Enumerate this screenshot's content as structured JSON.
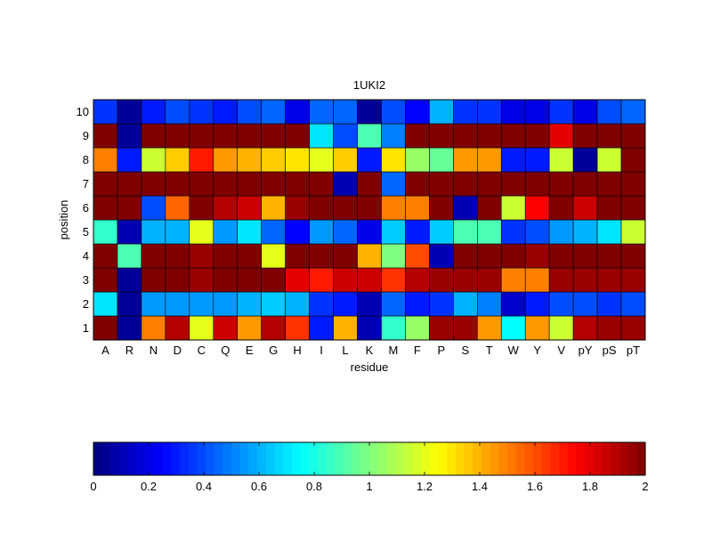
{
  "chart_data": {
    "type": "heatmap",
    "title": "1UKI2",
    "xlabel": "residue",
    "ylabel": "position",
    "x_categories": [
      "A",
      "R",
      "N",
      "D",
      "C",
      "Q",
      "E",
      "G",
      "H",
      "I",
      "L",
      "K",
      "M",
      "F",
      "P",
      "S",
      "T",
      "W",
      "Y",
      "V",
      "pY",
      "pS",
      "pT"
    ],
    "y_categories": [
      "1",
      "2",
      "3",
      "4",
      "5",
      "6",
      "7",
      "8",
      "9",
      "10"
    ],
    "colormap": "jet",
    "clim": [
      0,
      2
    ],
    "colorbar": {
      "orientation": "horizontal",
      "placement": "bottom",
      "ticks": [
        "0",
        "0.2",
        "0.4",
        "0.6",
        "0.8",
        "1",
        "1.2",
        "1.4",
        "1.6",
        "1.8",
        "2"
      ]
    },
    "values": [
      [
        2.0,
        0.05,
        1.5,
        1.9,
        1.2,
        1.85,
        1.45,
        1.9,
        1.65,
        0.3,
        1.4,
        0.1,
        0.85,
        1.05,
        1.95,
        1.95,
        1.45,
        0.75,
        1.45,
        1.15,
        1.9,
        1.95,
        1.95
      ],
      [
        0.7,
        0.05,
        0.55,
        0.55,
        0.55,
        0.55,
        0.6,
        0.65,
        0.6,
        0.35,
        0.3,
        0.1,
        0.45,
        0.3,
        0.35,
        0.6,
        0.5,
        0.15,
        0.3,
        0.4,
        0.4,
        0.35,
        0.4
      ],
      [
        2.0,
        0.05,
        2.0,
        2.0,
        1.95,
        2.0,
        2.0,
        2.0,
        1.8,
        1.7,
        1.85,
        1.85,
        1.65,
        1.9,
        1.95,
        1.95,
        1.95,
        1.5,
        1.5,
        1.95,
        1.95,
        1.95,
        1.95
      ],
      [
        2.0,
        0.9,
        2.0,
        2.0,
        1.95,
        2.0,
        2.0,
        1.2,
        2.0,
        2.0,
        2.0,
        1.4,
        1.0,
        1.6,
        0.1,
        2.0,
        2.0,
        2.0,
        1.95,
        2.0,
        2.0,
        2.0,
        2.0
      ],
      [
        0.85,
        0.1,
        0.6,
        0.6,
        1.2,
        0.55,
        0.7,
        0.45,
        0.25,
        0.55,
        0.45,
        0.2,
        0.65,
        0.3,
        0.65,
        0.9,
        0.9,
        0.35,
        0.4,
        0.55,
        0.6,
        0.7,
        1.15
      ],
      [
        2.0,
        2.0,
        0.4,
        1.55,
        2.0,
        1.9,
        1.85,
        1.4,
        1.95,
        2.0,
        2.0,
        2.0,
        1.5,
        1.5,
        2.0,
        0.1,
        2.0,
        1.15,
        1.75,
        2.0,
        1.85,
        2.0,
        2.0
      ],
      [
        2.0,
        2.0,
        2.0,
        2.0,
        2.0,
        2.0,
        2.0,
        2.0,
        2.0,
        2.0,
        0.1,
        2.0,
        0.45,
        2.0,
        2.0,
        2.0,
        2.0,
        2.0,
        2.0,
        2.0,
        2.0,
        2.0,
        2.0
      ],
      [
        1.5,
        0.3,
        1.15,
        1.35,
        1.7,
        1.45,
        1.4,
        1.35,
        1.3,
        1.2,
        1.35,
        0.3,
        1.3,
        1.05,
        0.95,
        1.45,
        1.45,
        0.3,
        0.3,
        1.15,
        0.05,
        1.15,
        2.0
      ],
      [
        2.0,
        0.05,
        2.0,
        2.0,
        2.0,
        2.0,
        2.0,
        2.0,
        2.0,
        0.7,
        0.4,
        0.9,
        0.5,
        2.0,
        2.0,
        2.0,
        2.0,
        2.0,
        2.0,
        1.8,
        2.0,
        2.0,
        2.0
      ],
      [
        0.35,
        0.05,
        0.3,
        0.4,
        0.35,
        0.3,
        0.4,
        0.45,
        0.2,
        0.45,
        0.45,
        0.05,
        0.4,
        0.25,
        0.6,
        0.35,
        0.35,
        0.2,
        0.2,
        0.35,
        0.2,
        0.4,
        0.45
      ]
    ]
  }
}
